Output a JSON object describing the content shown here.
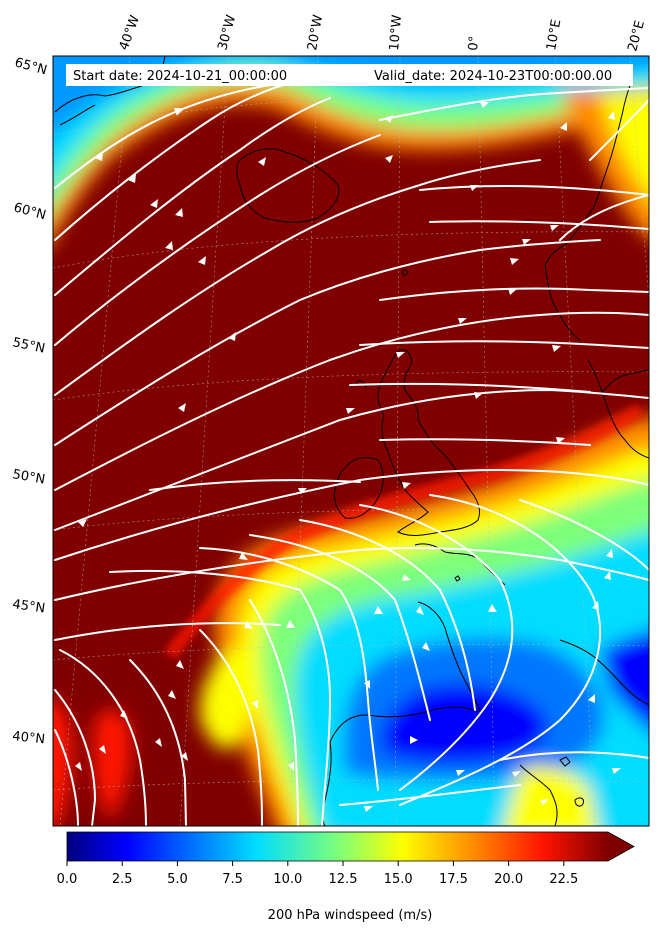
{
  "header": {
    "start_date": "Start date: 2024-10-21_00:00:00",
    "valid_date": "Valid_date: 2024-10-23T00:00:00.00"
  },
  "longitude_labels": [
    "40°W",
    "30°W",
    "20°W",
    "10°W",
    "0°",
    "10°E",
    "20°E"
  ],
  "latitude_labels": [
    "65°N",
    "60°N",
    "55°N",
    "50°N",
    "45°N",
    "40°N"
  ],
  "colorbar": {
    "label": "200 hPa windspeed (m/s)",
    "min": 0,
    "max": 25,
    "extend": "max",
    "colormap": "jet",
    "ticks": [
      "0.0",
      "2.5",
      "5.0",
      "7.5",
      "10.0",
      "12.5",
      "15.0",
      "17.5",
      "20.0",
      "22.5"
    ]
  },
  "colors": {
    "streamlines": "#ffffff",
    "coastlines": "#000000",
    "max_speed": "#800000",
    "min_speed": "#00007f"
  },
  "layers": [
    "wind-speed-contour-fill",
    "streamlines",
    "coastlines",
    "graticule"
  ]
}
